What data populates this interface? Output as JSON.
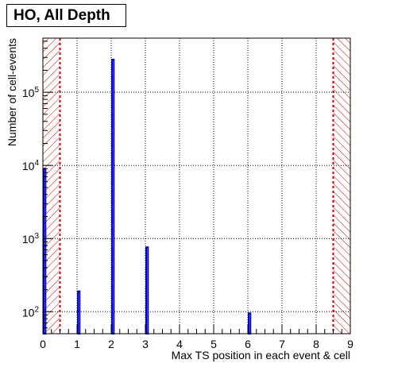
{
  "title": "HO, All Depth",
  "chart_data": {
    "type": "bar",
    "title": "HO, All Depth",
    "xlabel": "Max TS position in each event & cell",
    "ylabel": "Number of cell-events",
    "xlim": [
      0,
      9
    ],
    "ylim": [
      50,
      550000
    ],
    "ylog": true,
    "grid": true,
    "x_ticks": [
      "0",
      "1",
      "2",
      "3",
      "4",
      "5",
      "6",
      "7",
      "8",
      "9"
    ],
    "y_ticks": [
      {
        "value": 100,
        "base": "10",
        "exp": "2"
      },
      {
        "value": 1000,
        "base": "10",
        "exp": "3"
      },
      {
        "value": 10000,
        "base": "10",
        "exp": "4"
      },
      {
        "value": 100000,
        "base": "10",
        "exp": "5"
      }
    ],
    "bin_width": 0.1,
    "bars": [
      {
        "x": 0,
        "value": 9000
      },
      {
        "x": 1,
        "value": 190
      },
      {
        "x": 2,
        "value": 280000
      },
      {
        "x": 3,
        "value": 760
      },
      {
        "x": 6,
        "value": 95
      }
    ],
    "excluded_regions": [
      [
        0,
        0.5
      ],
      [
        8.5,
        9
      ]
    ],
    "colors": {
      "histogram": "#0000cc",
      "cut": "#cc0000",
      "grid": "#000000"
    }
  }
}
